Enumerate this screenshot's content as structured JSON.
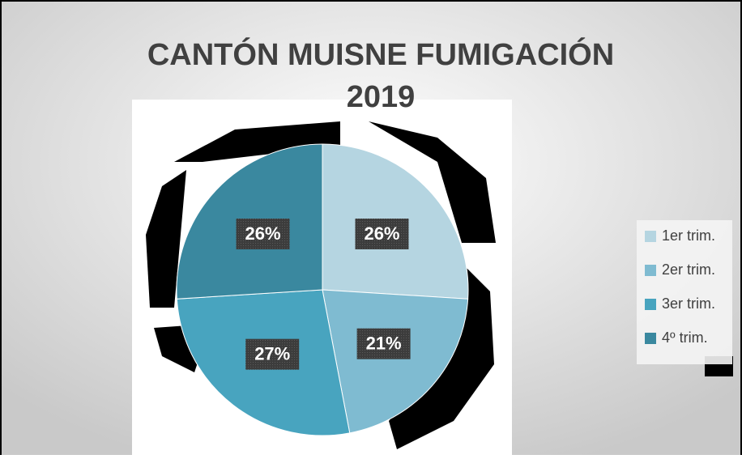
{
  "chart_data": {
    "type": "pie",
    "title": "CANTÓN MUISNE FUMIGACIÓN 2019",
    "categories": [
      "1er trim.",
      "2er trim.",
      "3er trim.",
      "4º trim."
    ],
    "values": [
      26,
      21,
      27,
      26
    ],
    "value_labels": [
      "26%",
      "21%",
      "27%",
      "26%"
    ],
    "colors": [
      "#b5d5e1",
      "#7fbbd1",
      "#48a4bf",
      "#3a889f"
    ],
    "legend": "right"
  }
}
